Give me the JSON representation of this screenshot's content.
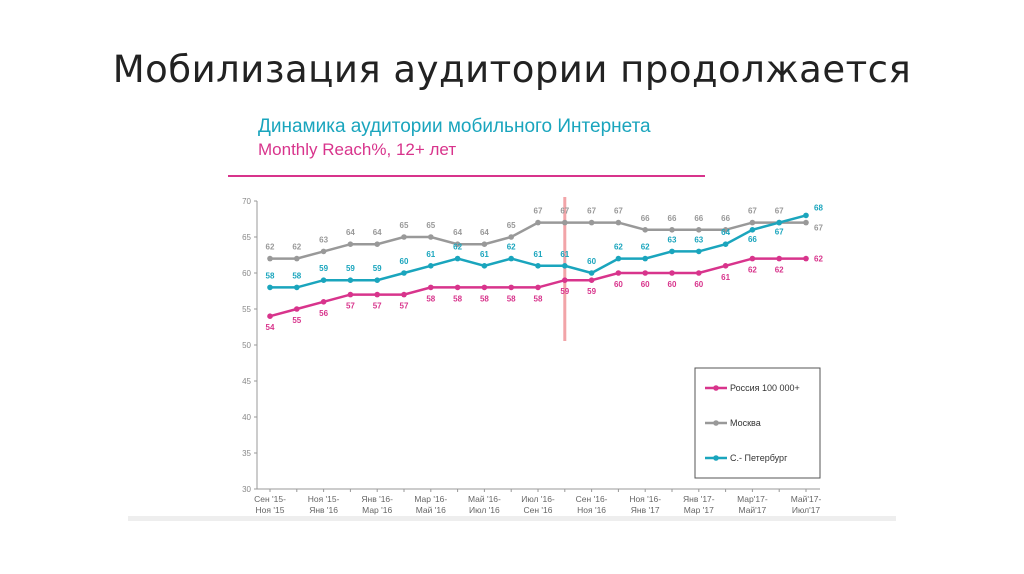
{
  "slide": {
    "title": "Мобилизация аудитории продолжается",
    "subtitle": "Динамика аудитории мобильного Интернета",
    "subtitle2": "Monthly Reach%, 12+ лет"
  },
  "chart_data": {
    "type": "line",
    "ylim": [
      30,
      70
    ],
    "yticks": [
      30,
      35,
      40,
      45,
      50,
      55,
      60,
      65,
      70
    ],
    "xtick_labels": [
      [
        "Сен '15-",
        "Ноя '15"
      ],
      [
        "Ноя '15-",
        "Янв '16"
      ],
      [
        "Янв '16-",
        "Мар '16"
      ],
      [
        "Мар '16-",
        "Май '16"
      ],
      [
        "Май '16-",
        "Июл '16"
      ],
      [
        "Июл '16-",
        "Сен '16"
      ],
      [
        "Сен '16-",
        "Ноя '16"
      ],
      [
        "Ноя '16-",
        "Янв '17"
      ],
      [
        "Янв '17-",
        "Мар '17"
      ],
      [
        "Мар'17-",
        "Май'17"
      ],
      [
        "Май'17-",
        "Июл'17"
      ]
    ],
    "n_points": 21,
    "marker_index": 11,
    "legend_position": "bottom-right",
    "series": [
      {
        "name": "Россия 100 000+",
        "color": "#d8348c",
        "values": [
          54,
          55,
          56,
          57,
          57,
          57,
          58,
          58,
          58,
          58,
          58,
          59,
          59,
          60,
          60,
          60,
          60,
          61,
          62,
          62,
          62
        ]
      },
      {
        "name": "Москва",
        "color": "#999999",
        "values": [
          62,
          62,
          63,
          64,
          64,
          65,
          65,
          64,
          64,
          65,
          67,
          67,
          67,
          67,
          66,
          66,
          66,
          66,
          67,
          67,
          67
        ]
      },
      {
        "name": "С.- Петербург",
        "color": "#1aa5bd",
        "values": [
          58,
          58,
          59,
          59,
          59,
          60,
          61,
          62,
          61,
          62,
          61,
          61,
          60,
          62,
          62,
          63,
          63,
          64,
          66,
          67,
          68
        ]
      }
    ]
  }
}
